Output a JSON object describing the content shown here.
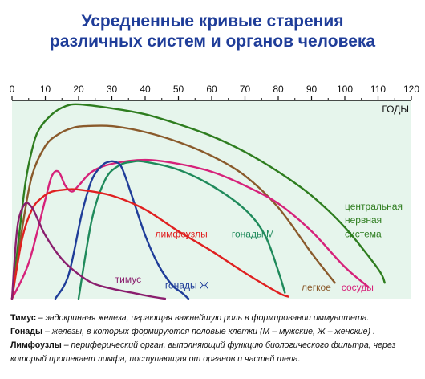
{
  "title_lines": [
    "Усредненные кривые старения",
    "различных систем и органов человека"
  ],
  "notes": [
    {
      "term": "Тимус",
      "text": " – эндокринная железа, играющая важнейшую роль в формировании иммунитета."
    },
    {
      "term": "Гонады",
      "text": " – железы, в которых формируются половые клетки (М – мужские, Ж – женские) ."
    },
    {
      "term": "Лимфоузлы",
      "text": " – периферический орган, выполняющий функцию биологического фильтра, через который протекает лимфа, поступающая от органов и частей тела."
    }
  ],
  "chart_data": {
    "type": "line",
    "xlabel": "ГОДЫ",
    "xlim": [
      0,
      120
    ],
    "xticks": [
      0,
      10,
      20,
      30,
      40,
      50,
      60,
      70,
      80,
      90,
      100,
      110,
      120
    ],
    "ylim": [
      0,
      100
    ],
    "grid": false,
    "plot_background": "#e6f5ec",
    "series": [
      {
        "name": "центральная нервная система",
        "color": "#2e7d1f",
        "x": [
          0,
          2,
          4,
          6,
          8,
          12,
          16,
          20,
          30,
          40,
          50,
          60,
          70,
          80,
          90,
          100,
          110,
          112
        ],
        "y": [
          0,
          30,
          58,
          75,
          85,
          93,
          97,
          98,
          96,
          93,
          88,
          82,
          74,
          64,
          52,
          36,
          15,
          8
        ]
      },
      {
        "name": "легкое",
        "color": "#8a5a2b",
        "x": [
          0,
          3,
          6,
          10,
          14,
          18,
          22,
          30,
          40,
          50,
          60,
          70,
          80,
          90,
          97
        ],
        "y": [
          0,
          35,
          62,
          77,
          83,
          86,
          87,
          87,
          84,
          79,
          72,
          62,
          46,
          23,
          8
        ]
      },
      {
        "name": "сосуды",
        "color": "#d6227a",
        "x": [
          0,
          5,
          10,
          12,
          14,
          16,
          18,
          20,
          24,
          30,
          40,
          50,
          60,
          70,
          80,
          90,
          100,
          107
        ],
        "y": [
          0,
          18,
          50,
          62,
          64,
          57,
          54,
          57,
          64,
          68,
          70,
          68,
          64,
          57,
          48,
          34,
          16,
          6
        ]
      },
      {
        "name": "гонады М",
        "color": "#1f8a5b",
        "x": [
          20,
          24,
          28,
          32,
          36,
          40,
          50,
          60,
          70,
          76,
          80,
          82
        ],
        "y": [
          0,
          40,
          60,
          67,
          69,
          69,
          65,
          57,
          45,
          32,
          14,
          3
        ]
      },
      {
        "name": "гонады Ж",
        "color": "#1f3d99",
        "x": [
          13,
          17,
          21,
          24,
          27,
          29,
          31,
          33,
          36,
          40,
          44,
          48,
          51,
          53
        ],
        "y": [
          0,
          12,
          43,
          60,
          67,
          69,
          69,
          66,
          52,
          32,
          17,
          7,
          3,
          0
        ]
      },
      {
        "name": "лимфоузлы",
        "color": "#e02020",
        "x": [
          0,
          3,
          6,
          9,
          12,
          16,
          20,
          30,
          40,
          50,
          60,
          70,
          80,
          83
        ],
        "y": [
          0,
          30,
          45,
          51,
          54,
          55,
          55,
          52,
          45,
          34,
          24,
          13,
          3,
          1
        ]
      },
      {
        "name": "тимус",
        "color": "#8a1f6e",
        "x": [
          0,
          1,
          2,
          4,
          6,
          8,
          10,
          14,
          18,
          24,
          30,
          36,
          42,
          46
        ],
        "y": [
          0,
          25,
          40,
          48,
          46,
          39,
          32,
          22,
          15,
          8,
          5,
          3,
          1,
          0
        ]
      }
    ],
    "labels": [
      {
        "text": "центральная",
        "x": 100,
        "y": 45,
        "color": "#2e7d1f"
      },
      {
        "text": "нервная",
        "x": 100,
        "y": 38,
        "color": "#2e7d1f"
      },
      {
        "text": "система",
        "x": 100,
        "y": 31,
        "color": "#2e7d1f"
      },
      {
        "text": "легкое",
        "x": 87,
        "y": 4,
        "color": "#8a5a2b"
      },
      {
        "text": "сосуды",
        "x": 99,
        "y": 4,
        "color": "#d6227a"
      },
      {
        "text": "гонады М",
        "x": 66,
        "y": 31,
        "color": "#1f8a5b"
      },
      {
        "text": "гонады Ж",
        "x": 46,
        "y": 5,
        "color": "#1f3d99"
      },
      {
        "text": "лимфоузлы",
        "x": 43,
        "y": 31,
        "color": "#e02020"
      },
      {
        "text": "тимус",
        "x": 31,
        "y": 8,
        "color": "#8a1f6e"
      }
    ]
  }
}
